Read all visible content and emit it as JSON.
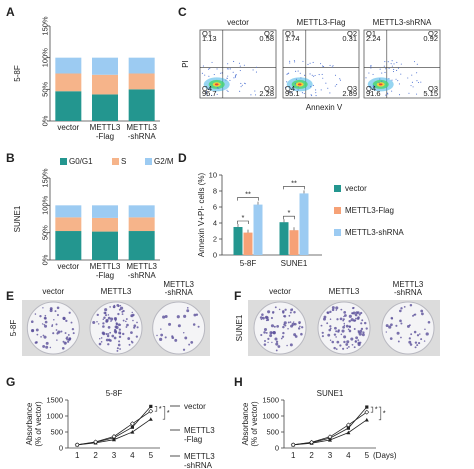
{
  "panels": {
    "A": "A",
    "B": "B",
    "C": "C",
    "D": "D",
    "E": "E",
    "F": "F",
    "G": "G",
    "H": "H"
  },
  "colors": {
    "g0g1": "#23968f",
    "s": "#f6b48a",
    "g2m": "#9ccbf2",
    "vector": "#23968f",
    "flag": "#f6a176",
    "shrna": "#9ccbf2"
  },
  "chart_data": [
    {
      "panel": "A",
      "type": "bar",
      "stacked": true,
      "ylabel": "5-8F",
      "ylim": [
        0,
        150
      ],
      "yticks": [
        "0%",
        "50%",
        "100%",
        "150%"
      ],
      "categories": [
        "vector",
        "METTL3\n-Flag",
        "METTL3\n-shRNA"
      ],
      "series": [
        {
          "name": "G0/G1",
          "values": [
            47,
            42,
            50
          ]
        },
        {
          "name": "S",
          "values": [
            28,
            31,
            25
          ]
        },
        {
          "name": "G2/M",
          "values": [
            25,
            27,
            25
          ]
        }
      ]
    },
    {
      "panel": "B",
      "type": "bar",
      "stacked": true,
      "ylabel": "SUNE1",
      "ylim": [
        0,
        150
      ],
      "yticks": [
        "0%",
        "50%",
        "100%",
        "150%"
      ],
      "categories": [
        "vector",
        "METTL3\n-Flag",
        "METTL3\n-shRNA"
      ],
      "legend": [
        "G0/G1",
        "S",
        "G2/M"
      ],
      "series": [
        {
          "name": "G0/G1",
          "values": [
            53,
            52,
            53
          ]
        },
        {
          "name": "S",
          "values": [
            25,
            25,
            25
          ]
        },
        {
          "name": "G2/M",
          "values": [
            22,
            23,
            22
          ]
        }
      ]
    },
    {
      "panel": "C",
      "type": "scatter",
      "titles": [
        "vector",
        "METTL3-Flag",
        "METTL3-shRNA"
      ],
      "ylabel": "PI",
      "xlabel": "Annexin V",
      "quadrants": [
        {
          "ul": "Q1\n1.13",
          "ur": "Q2\n0.58",
          "ll": "Q4\n96.7",
          "lr": "Q3\n2.28"
        },
        {
          "ul": "Q1\n1.74",
          "ur": "Q2\n0.31",
          "ll": "Q4\n95.1",
          "lr": "Q3\n2.89"
        },
        {
          "ul": "Q1\n2.24",
          "ur": "Q2\n0.92",
          "ll": "Q4\n91.6",
          "lr": "Q3\n5.15"
        }
      ]
    },
    {
      "panel": "D",
      "type": "bar",
      "ylabel": "Annexin V+PI- cells (%)",
      "ylim": [
        0,
        10
      ],
      "yticks": [
        "0",
        "2",
        "4",
        "6",
        "8",
        "10"
      ],
      "categories": [
        "5-8F",
        "SUNE1"
      ],
      "series": [
        {
          "name": "vector",
          "values": [
            3.5,
            4.1
          ]
        },
        {
          "name": "METTL3-Flag",
          "values": [
            2.8,
            3.1
          ]
        },
        {
          "name": "METTL3-shRNA",
          "values": [
            6.3,
            7.7
          ]
        }
      ],
      "annotations": [
        "*",
        "**",
        "*",
        "**"
      ]
    },
    {
      "panel": "G",
      "type": "line",
      "title": "5-8F",
      "ylabel": "Absorbance\n(% of vector)",
      "ylim": [
        0,
        1500
      ],
      "yticks": [
        "0",
        "500",
        "1000",
        "1500"
      ],
      "x": [
        1,
        2,
        3,
        4,
        5
      ],
      "legend": [
        "vector",
        "METTL3\n-Flag",
        "METTL3\n-shRNA"
      ],
      "series": [
        {
          "name": "vector",
          "values": [
            100,
            180,
            320,
            650,
            1300
          ]
        },
        {
          "name": "METTL3-Flag",
          "values": [
            100,
            160,
            260,
            500,
            900
          ]
        },
        {
          "name": "METTL3-shRNA",
          "values": [
            100,
            190,
            360,
            760,
            1150
          ]
        }
      ],
      "annotations": [
        "*",
        "*"
      ]
    },
    {
      "panel": "H",
      "type": "line",
      "title": "SUNE1",
      "ylabel": "Absorbance\n(% of vector)",
      "ylim": [
        0,
        1500
      ],
      "yticks": [
        "0",
        "500",
        "1000",
        "1500"
      ],
      "x": [
        1,
        2,
        3,
        4,
        5
      ],
      "xlabel": "(Days)",
      "series": [
        {
          "values": [
            100,
            170,
            310,
            620,
            1280
          ]
        },
        {
          "values": [
            100,
            150,
            250,
            480,
            880
          ]
        },
        {
          "values": [
            100,
            180,
            350,
            720,
            1120
          ]
        }
      ],
      "annotations": [
        "*",
        "*"
      ]
    }
  ],
  "colonies": {
    "E": {
      "ylabel": "5-8F",
      "titles": [
        "vector",
        "METTL3",
        "METTL3\n-shRNA"
      ]
    },
    "F": {
      "ylabel": "SUNE1",
      "titles": [
        "vector",
        "METTL3",
        "METTL3\n-shRNA"
      ]
    }
  }
}
